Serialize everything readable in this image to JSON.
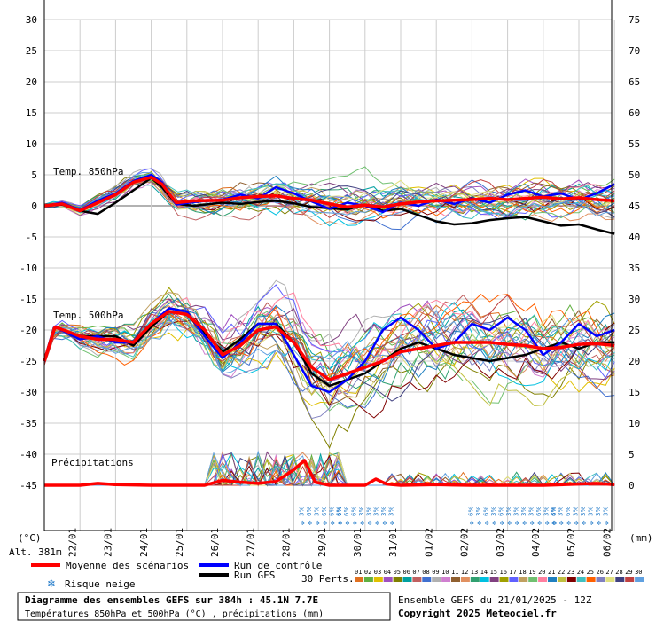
{
  "chart_data": {
    "type": "line",
    "title": "Diagramme des ensembles GEFS sur 384h : 45.1N 7.7E",
    "subtitle": "Températures 850hPa et 500hPa (°C) , précipitations (mm)",
    "run_info": "Ensemble GEFS du 21/01/2025 - 12Z",
    "copyright": "Copyright 2025 Meteociel.fr",
    "altitude": "Alt. 381m",
    "left_unit": "(°C)",
    "right_unit": "(mm)",
    "left_ticks": [
      "30",
      "25",
      "20",
      "15",
      "10",
      "5",
      "0",
      "-5",
      "-10",
      "-15",
      "-20",
      "-25",
      "-30",
      "-35",
      "-40",
      "-45"
    ],
    "right_ticks": [
      "75",
      "70",
      "65",
      "60",
      "55",
      "50",
      "45",
      "40",
      "35",
      "30",
      "25",
      "20",
      "15",
      "10",
      "5",
      "0"
    ],
    "x_dates": [
      "22/01",
      "23/01",
      "24/01",
      "25/01",
      "26/01",
      "27/01",
      "28/01",
      "29/01",
      "30/01",
      "31/01",
      "01/02",
      "02/02",
      "03/02",
      "04/02",
      "05/02",
      "06/02"
    ],
    "panel_labels": {
      "t850": "Temp. 850hPa",
      "t500": "Temp. 500hPa",
      "precip": "Précipitations"
    },
    "legend": {
      "mean": "Moyenne des scénarios",
      "control": "Run de contrôle",
      "gfs": "Run GFS",
      "snow": "Risque neige",
      "perts": "30 Perts.",
      "pert_labels": [
        "01",
        "02",
        "03",
        "04",
        "05",
        "06",
        "07",
        "08",
        "09",
        "10",
        "11",
        "12",
        "13",
        "14",
        "15",
        "16",
        "17",
        "18",
        "19",
        "20",
        "21",
        "22",
        "23",
        "24",
        "25",
        "26",
        "27",
        "28",
        "29",
        "30"
      ]
    },
    "colors": {
      "mean": "#ff0000",
      "control": "#0000ff",
      "gfs": "#000000",
      "snow": "#1e78c8",
      "perts": [
        "#e07020",
        "#60b040",
        "#e0c000",
        "#a050c0",
        "#808000",
        "#00a0a0",
        "#c06060",
        "#4070d0",
        "#b0b0b0",
        "#d080d0",
        "#906030",
        "#e09060",
        "#30a070",
        "#00c0e0",
        "#804080",
        "#a0a000",
        "#6060ff",
        "#c0a060",
        "#70c070",
        "#ff80a0",
        "#2080c0",
        "#c0c040",
        "#800000",
        "#40c0c0",
        "#ff6000",
        "#8080c0",
        "#e0e080",
        "#404080",
        "#c04040",
        "#60a0e0"
      ]
    },
    "snow_risk_labels": [
      "3%",
      "6%",
      "3%",
      "6%",
      "6%",
      "6%",
      "6%",
      "6%",
      "6%",
      "3%",
      "3%",
      "3%",
      "3%",
      "3%",
      "6%",
      "3%",
      "6%",
      "3%",
      "6%",
      "3%",
      "3%",
      "3%",
      "3%",
      "6%",
      "3%",
      "6%",
      "3%",
      "3%",
      "6%",
      "3%",
      "3%",
      "3%",
      "3%",
      "3%"
    ],
    "series": [
      {
        "name": "Moyenne des scénarios",
        "panel": "t850",
        "values": [
          [
            0,
            0
          ],
          [
            0.5,
            0.3
          ],
          [
            1,
            -0.8
          ],
          [
            1.5,
            0.5
          ],
          [
            2,
            1.8
          ],
          [
            2.5,
            3.8
          ],
          [
            3,
            4.6
          ],
          [
            3.3,
            3.5
          ],
          [
            3.7,
            0.5
          ],
          [
            4.2,
            0.8
          ],
          [
            5,
            0.9
          ],
          [
            5.5,
            1.3
          ],
          [
            6,
            1.5
          ],
          [
            6.5,
            1.6
          ],
          [
            7,
            1.2
          ],
          [
            7.5,
            0.9
          ],
          [
            8,
            0.3
          ],
          [
            8.5,
            -0.2
          ],
          [
            9,
            0.1
          ],
          [
            9.5,
            -0.2
          ],
          [
            10,
            0.3
          ],
          [
            10.5,
            0.6
          ],
          [
            11,
            0.8
          ],
          [
            11.5,
            0.9
          ],
          [
            12,
            1.0
          ],
          [
            12.5,
            1.2
          ],
          [
            13,
            1.0
          ],
          [
            13.5,
            1.2
          ],
          [
            14,
            1.4
          ],
          [
            14.5,
            1.1
          ],
          [
            15,
            1.3
          ],
          [
            15.5,
            1.0
          ],
          [
            16,
            0.8
          ]
        ]
      },
      {
        "name": "Run de contrôle",
        "panel": "t850",
        "values": [
          [
            0,
            0
          ],
          [
            0.5,
            0.5
          ],
          [
            1,
            -0.7
          ],
          [
            1.5,
            0.8
          ],
          [
            2,
            2.0
          ],
          [
            2.5,
            4.0
          ],
          [
            3,
            5.0
          ],
          [
            3.3,
            3.8
          ],
          [
            3.7,
            0.2
          ],
          [
            4.2,
            0.6
          ],
          [
            5,
            1.0
          ],
          [
            5.5,
            1.8
          ],
          [
            6,
            1.2
          ],
          [
            6.5,
            3.0
          ],
          [
            7,
            2.0
          ],
          [
            7.5,
            0.7
          ],
          [
            8,
            -0.5
          ],
          [
            8.5,
            0.5
          ],
          [
            9,
            0.0
          ],
          [
            9.5,
            -1.0
          ],
          [
            10,
            0.5
          ],
          [
            10.5,
            0.0
          ],
          [
            11,
            1.0
          ],
          [
            11.5,
            0.3
          ],
          [
            12,
            1.2
          ],
          [
            12.5,
            0.5
          ],
          [
            13,
            1.8
          ],
          [
            13.5,
            2.5
          ],
          [
            14,
            1.5
          ],
          [
            14.5,
            2.0
          ],
          [
            15,
            1.0
          ],
          [
            15.5,
            2.0
          ],
          [
            16,
            3.5
          ]
        ]
      },
      {
        "name": "Run GFS",
        "panel": "t850",
        "values": [
          [
            0,
            0
          ],
          [
            0.5,
            0.2
          ],
          [
            1,
            -0.8
          ],
          [
            1.5,
            -1.3
          ],
          [
            2,
            0.5
          ],
          [
            2.5,
            2.5
          ],
          [
            3,
            4.5
          ],
          [
            3.3,
            3.0
          ],
          [
            3.7,
            0.3
          ],
          [
            4.2,
            0.0
          ],
          [
            5,
            0.5
          ],
          [
            5.5,
            0.3
          ],
          [
            6,
            0.6
          ],
          [
            6.5,
            0.8
          ],
          [
            7,
            0.4
          ],
          [
            7.5,
            -0.2
          ],
          [
            8,
            -0.4
          ],
          [
            8.5,
            -0.6
          ],
          [
            9,
            0.2
          ],
          [
            9.5,
            -0.8
          ],
          [
            10,
            -0.5
          ],
          [
            10.5,
            -1.5
          ],
          [
            11,
            -2.5
          ],
          [
            11.5,
            -3.0
          ],
          [
            12,
            -2.8
          ],
          [
            12.5,
            -2.3
          ],
          [
            13,
            -2.0
          ],
          [
            13.5,
            -1.8
          ],
          [
            14,
            -2.5
          ],
          [
            14.5,
            -3.2
          ],
          [
            15,
            -3.0
          ],
          [
            15.5,
            -3.8
          ],
          [
            16,
            -4.5
          ]
        ]
      },
      {
        "name": "Moyenne des scénarios",
        "panel": "t500",
        "values": [
          [
            0,
            -25
          ],
          [
            0.3,
            -19.5
          ],
          [
            1,
            -21
          ],
          [
            1.5,
            -21.5
          ],
          [
            2,
            -21.5
          ],
          [
            2.5,
            -22
          ],
          [
            3,
            -19
          ],
          [
            3.5,
            -17
          ],
          [
            4,
            -17.5
          ],
          [
            4.5,
            -20
          ],
          [
            5,
            -24
          ],
          [
            5.5,
            -22.5
          ],
          [
            6,
            -20
          ],
          [
            6.5,
            -19.5
          ],
          [
            7,
            -22
          ],
          [
            7.5,
            -26
          ],
          [
            8,
            -28
          ],
          [
            8.5,
            -27
          ],
          [
            9,
            -26
          ],
          [
            9.5,
            -25
          ],
          [
            10,
            -23.5
          ],
          [
            10.5,
            -23
          ],
          [
            11,
            -22.5
          ],
          [
            11.5,
            -22
          ],
          [
            12,
            -22
          ],
          [
            12.5,
            -22
          ],
          [
            13,
            -22.3
          ],
          [
            13.5,
            -22.5
          ],
          [
            14,
            -23
          ],
          [
            14.5,
            -22.8
          ],
          [
            15,
            -22.3
          ],
          [
            15.5,
            -22.2
          ],
          [
            16,
            -22.5
          ]
        ]
      },
      {
        "name": "Run de contrôle",
        "panel": "t500",
        "values": [
          [
            0,
            -25
          ],
          [
            0.3,
            -19.5
          ],
          [
            1,
            -21.5
          ],
          [
            1.5,
            -21
          ],
          [
            2,
            -22
          ],
          [
            2.5,
            -22
          ],
          [
            3,
            -19
          ],
          [
            3.5,
            -16.5
          ],
          [
            4,
            -17
          ],
          [
            4.5,
            -21
          ],
          [
            5,
            -24.5
          ],
          [
            5.5,
            -22
          ],
          [
            6,
            -19
          ],
          [
            6.5,
            -19
          ],
          [
            7,
            -24
          ],
          [
            7.5,
            -29
          ],
          [
            8,
            -30
          ],
          [
            8.5,
            -28
          ],
          [
            9,
            -25
          ],
          [
            9.5,
            -20
          ],
          [
            10,
            -18
          ],
          [
            10.5,
            -20
          ],
          [
            11,
            -23
          ],
          [
            11.5,
            -22
          ],
          [
            12,
            -19
          ],
          [
            12.5,
            -20
          ],
          [
            13,
            -18
          ],
          [
            13.5,
            -20
          ],
          [
            14,
            -24
          ],
          [
            14.5,
            -22
          ],
          [
            15,
            -19
          ],
          [
            15.5,
            -21
          ],
          [
            16,
            -20
          ]
        ]
      },
      {
        "name": "Run GFS",
        "panel": "t500",
        "values": [
          [
            0,
            -25
          ],
          [
            0.3,
            -19.5
          ],
          [
            1,
            -21
          ],
          [
            1.5,
            -21
          ],
          [
            2,
            -21
          ],
          [
            2.5,
            -22.5
          ],
          [
            3,
            -19.5
          ],
          [
            3.5,
            -17
          ],
          [
            4,
            -17.5
          ],
          [
            4.5,
            -20.5
          ],
          [
            5,
            -23.5
          ],
          [
            5.5,
            -21.5
          ],
          [
            6,
            -19
          ],
          [
            6.5,
            -19
          ],
          [
            7,
            -22
          ],
          [
            7.5,
            -27
          ],
          [
            8,
            -29
          ],
          [
            8.5,
            -28
          ],
          [
            9,
            -27
          ],
          [
            9.5,
            -25
          ],
          [
            10,
            -23
          ],
          [
            10.5,
            -22
          ],
          [
            11,
            -23
          ],
          [
            11.5,
            -24
          ],
          [
            12,
            -24.5
          ],
          [
            12.5,
            -25
          ],
          [
            13,
            -24.5
          ],
          [
            13.5,
            -24
          ],
          [
            14,
            -23
          ],
          [
            14.5,
            -22
          ],
          [
            15,
            -23
          ],
          [
            15.5,
            -22
          ],
          [
            16,
            -22
          ]
        ]
      },
      {
        "name": "Moyenne des scénarios",
        "panel": "precip",
        "values": [
          [
            0,
            0
          ],
          [
            1,
            0
          ],
          [
            1.5,
            0.3
          ],
          [
            2,
            0.1
          ],
          [
            3,
            0
          ],
          [
            4,
            0
          ],
          [
            4.5,
            0
          ],
          [
            5,
            0.8
          ],
          [
            5.5,
            0.5
          ],
          [
            6,
            0.3
          ],
          [
            6.5,
            0.6
          ],
          [
            7,
            2.5
          ],
          [
            7.3,
            4.0
          ],
          [
            7.6,
            0.5
          ],
          [
            8,
            0
          ],
          [
            9,
            0
          ],
          [
            9.3,
            1.0
          ],
          [
            9.6,
            0.2
          ],
          [
            10,
            0
          ],
          [
            11,
            0.1
          ],
          [
            12,
            0
          ],
          [
            13,
            0
          ],
          [
            14,
            0
          ],
          [
            15,
            0.2
          ],
          [
            15.5,
            0.3
          ],
          [
            16,
            0.1
          ]
        ]
      }
    ]
  }
}
